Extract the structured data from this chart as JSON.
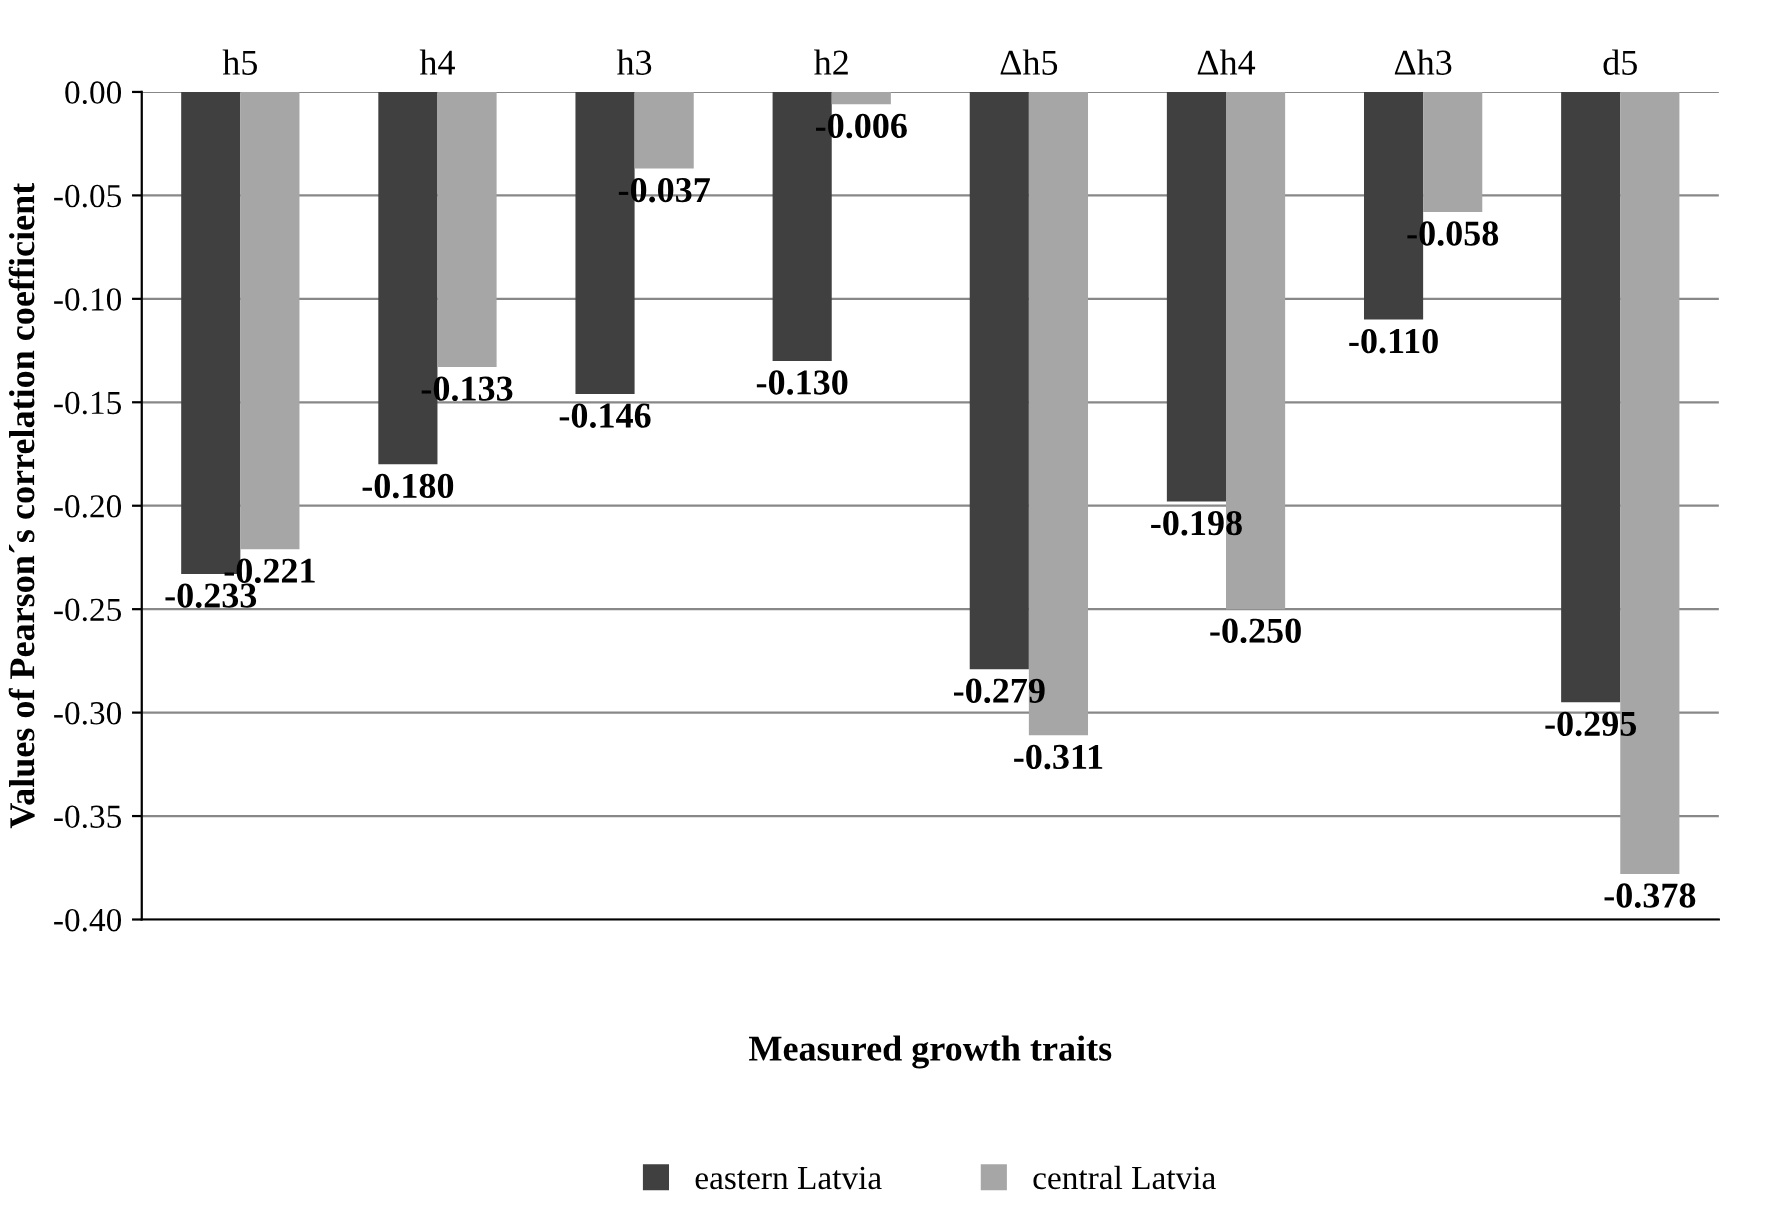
{
  "chart_data": {
    "type": "bar",
    "xlabel": "Measured growth traits",
    "ylabel": "Values of Pearson´s correlation coefficient",
    "categories": [
      "h5",
      "h4",
      "h3",
      "h2",
      "Δh5",
      "Δh4",
      "Δh3",
      "d5"
    ],
    "series": [
      {
        "name": "eastern Latvia",
        "color": "#404040",
        "values": [
          -0.233,
          -0.18,
          -0.146,
          -0.13,
          -0.279,
          -0.198,
          -0.11,
          -0.295
        ],
        "value_labels": [
          "-0.233",
          "-0.180",
          "-0.146",
          "-0.130",
          "-0.279",
          "-0.198",
          "-0.110",
          "-0.295"
        ]
      },
      {
        "name": "central Latvia",
        "color": "#a6a6a6",
        "values": [
          -0.221,
          -0.133,
          -0.037,
          -0.006,
          -0.311,
          -0.25,
          -0.058,
          -0.378
        ],
        "value_labels": [
          "-0.221",
          "-0.133",
          "-0.037",
          "-0.006",
          "-0.311",
          "-0.250",
          "-0.058",
          "-0.378"
        ]
      }
    ],
    "ylim": [
      -0.4,
      0.0
    ],
    "yticks": [
      {
        "value": 0.0,
        "label": "0.00"
      },
      {
        "value": -0.05,
        "label": "-0.05"
      },
      {
        "value": -0.1,
        "label": "-0.10"
      },
      {
        "value": -0.15,
        "label": "-0.15"
      },
      {
        "value": -0.2,
        "label": "-0.20"
      },
      {
        "value": -0.25,
        "label": "-0.25"
      },
      {
        "value": -0.3,
        "label": "-0.30"
      },
      {
        "value": -0.35,
        "label": "-0.35"
      },
      {
        "value": -0.4,
        "label": "-0.40"
      }
    ],
    "grid": "y",
    "legend": "bottom"
  }
}
